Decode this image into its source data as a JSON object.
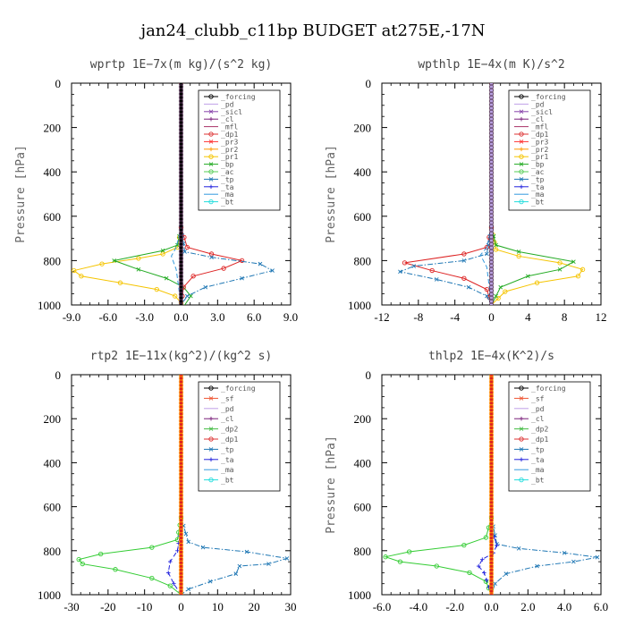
{
  "figure": {
    "title": "jan24_clubb_c11bp  BUDGET at275E,-17N"
  },
  "chart_data": [
    {
      "type": "line",
      "title": "wprtp   1E−7x(m kg)/(s^2 kg)",
      "ylabel": "Pressure [hPa]",
      "xlim": [
        -9.0,
        9.0
      ],
      "ylim": [
        1000,
        0
      ],
      "xticks": [
        "-9.0",
        "-6.0",
        "-3.0",
        "0.0",
        "3.0",
        "6.0",
        "9.0"
      ],
      "xtick_values": [
        -9,
        -6,
        -3,
        0,
        3,
        6,
        9
      ],
      "yticks": [
        "0",
        "200",
        "400",
        "600",
        "800",
        "1000"
      ],
      "ytick_values": [
        0,
        200,
        400,
        600,
        800,
        1000
      ],
      "legend": [
        "_forcing",
        "_pd",
        "_sicl",
        "_cl",
        "_mfl",
        "_dp1",
        "_pr3",
        "_pr2",
        "_pr1",
        "_bp",
        "_ac",
        "_tp",
        "_ta",
        "_ma",
        "_bt"
      ],
      "legend_position": "top-right",
      "series": [
        {
          "name": "_pr1",
          "color": "#f5c400",
          "dash": "solid",
          "marker": "circle",
          "x": [
            0,
            0,
            -0.3,
            -1.5,
            -3.5,
            -6.5,
            -8.8,
            -8.2,
            -5.0,
            -2.0,
            -0.5,
            0,
            0.2
          ],
          "y": [
            0,
            650,
            740,
            770,
            790,
            815,
            845,
            870,
            900,
            930,
            960,
            990,
            1000
          ]
        },
        {
          "name": "_bp",
          "color": "#22aa22",
          "dash": "solid",
          "marker": "x",
          "x": [
            0,
            0,
            -0.3,
            -1.5,
            -5.5,
            -3.5,
            -1.2,
            0.2,
            0.8,
            0.3
          ],
          "y": [
            0,
            650,
            730,
            755,
            800,
            840,
            880,
            920,
            960,
            1000
          ]
        },
        {
          "name": "_dp1",
          "color": "#dd2222",
          "dash": "solid",
          "marker": "circle",
          "x": [
            0,
            0,
            0.5,
            2.5,
            5.0,
            3.5,
            1.0,
            0.2,
            0
          ],
          "y": [
            0,
            650,
            740,
            770,
            800,
            835,
            870,
            920,
            1000
          ]
        },
        {
          "name": "_tp",
          "color": "#1f77b4",
          "dash": "dashdot",
          "marker": "x",
          "x": [
            0,
            0,
            0.3,
            2.5,
            6.5,
            7.5,
            5.0,
            2.0,
            0.5,
            0
          ],
          "y": [
            0,
            650,
            760,
            785,
            815,
            845,
            880,
            920,
            960,
            1000
          ]
        },
        {
          "name": "_ma",
          "color": "#3399dd",
          "dash": "dash",
          "marker": "none",
          "x": [
            0,
            0,
            -0.4,
            -0.8,
            -0.4,
            0
          ],
          "y": [
            0,
            650,
            740,
            780,
            840,
            1000
          ]
        },
        {
          "name": "_forcing",
          "color": "#000000",
          "dash": "solid",
          "marker": "circle",
          "x": [
            0,
            0
          ],
          "y": [
            0,
            1000
          ]
        }
      ]
    },
    {
      "type": "line",
      "title": "wpthlp   1E−4x(m K)/s^2",
      "ylabel": "Pressure [hPa]",
      "xlim": [
        -12,
        12
      ],
      "ylim": [
        1000,
        0
      ],
      "xticks": [
        "-12",
        "-8",
        "-4",
        "0",
        "4",
        "8",
        "12"
      ],
      "xtick_values": [
        -12,
        -8,
        -4,
        0,
        4,
        8,
        12
      ],
      "yticks": [
        "0",
        "200",
        "400",
        "600",
        "800",
        "1000"
      ],
      "ytick_values": [
        0,
        200,
        400,
        600,
        800,
        1000
      ],
      "legend": [
        "_forcing",
        "_pd",
        "_sicl",
        "_cl",
        "_mfl",
        "_dp1",
        "_pr3",
        "_pr2",
        "_pr1",
        "_bp",
        "_ac",
        "_tp",
        "_ta",
        "_ma",
        "_bt"
      ],
      "legend_position": "top-right",
      "series": [
        {
          "name": "_pr1",
          "color": "#f5c400",
          "dash": "solid",
          "marker": "circle",
          "x": [
            0,
            0,
            0.5,
            3.0,
            7.5,
            10.0,
            9.5,
            5.0,
            1.5,
            0
          ],
          "y": [
            0,
            650,
            750,
            780,
            810,
            840,
            870,
            900,
            940,
            1000
          ]
        },
        {
          "name": "_bp",
          "color": "#22aa22",
          "dash": "solid",
          "marker": "x",
          "x": [
            0,
            0,
            0.5,
            3.0,
            9.0,
            7.5,
            4.0,
            1.0,
            0
          ],
          "y": [
            0,
            650,
            730,
            760,
            805,
            840,
            870,
            920,
            1000
          ]
        },
        {
          "name": "_dp1",
          "color": "#dd2222",
          "dash": "solid",
          "marker": "circle",
          "x": [
            0,
            0,
            -0.5,
            -3.0,
            -9.5,
            -6.5,
            -3.0,
            -0.5,
            0
          ],
          "y": [
            0,
            650,
            740,
            770,
            810,
            845,
            880,
            930,
            1000
          ]
        },
        {
          "name": "_tp",
          "color": "#1f77b4",
          "dash": "dashdot",
          "marker": "x",
          "x": [
            0,
            0,
            -0.5,
            -3.0,
            -8.5,
            -10.0,
            -6.0,
            -2.5,
            -0.5,
            0
          ],
          "y": [
            0,
            650,
            770,
            800,
            825,
            850,
            885,
            920,
            960,
            1000
          ]
        },
        {
          "name": "_ma",
          "color": "#3399dd",
          "dash": "dash",
          "marker": "none",
          "x": [
            0,
            0,
            -0.5,
            -1.2,
            -0.5,
            0
          ],
          "y": [
            0,
            650,
            740,
            775,
            830,
            1000
          ]
        },
        {
          "name": "_forcing",
          "color": "#b8a0e0",
          "dash": "solid",
          "marker": "circle",
          "x": [
            0,
            0
          ],
          "y": [
            0,
            1000
          ]
        }
      ]
    },
    {
      "type": "line",
      "title": "rtp2   1E−11x(kg^2)/(kg^2 s)",
      "ylabel": "",
      "xlim": [
        -30,
        30
      ],
      "ylim": [
        1000,
        0
      ],
      "xticks": [
        "-30",
        "-20",
        "-10",
        "0",
        "10",
        "20",
        "30"
      ],
      "xtick_values": [
        -30,
        -20,
        -10,
        0,
        10,
        20,
        30
      ],
      "yticks": [
        "0",
        "200",
        "400",
        "600",
        "800",
        "1000"
      ],
      "ytick_values": [
        0,
        200,
        400,
        600,
        800,
        1000
      ],
      "legend": [
        "_forcing",
        "_sf",
        "_pd",
        "_cl",
        "_dp2",
        "_dp1",
        "_tp",
        "_ta",
        "_ma",
        "_bt"
      ],
      "legend_position": "top-right",
      "series": [
        {
          "name": "_dp1",
          "color": "#33cc33",
          "dash": "solid",
          "marker": "circle",
          "x": [
            0,
            0,
            -1.0,
            -8.0,
            -22.0,
            -28.0,
            -27.0,
            -18.0,
            -8.0,
            -3.0,
            0
          ],
          "y": [
            0,
            650,
            750,
            785,
            815,
            840,
            860,
            885,
            925,
            960,
            1000
          ]
        },
        {
          "name": "_tp",
          "color": "#1f77b4",
          "dash": "dashdot",
          "marker": "x",
          "x": [
            0,
            0,
            2.0,
            6.0,
            18.0,
            29.0,
            24.0,
            16.0,
            15.0,
            8.0,
            2.0,
            0
          ],
          "y": [
            0,
            650,
            760,
            785,
            805,
            835,
            860,
            870,
            905,
            940,
            975,
            1000
          ]
        },
        {
          "name": "_ta",
          "color": "#2222dd",
          "dash": "dash",
          "marker": "plus",
          "x": [
            0,
            0,
            -1.0,
            -3.0,
            -3.5,
            -2.0,
            0
          ],
          "y": [
            0,
            700,
            800,
            850,
            900,
            950,
            1000
          ]
        },
        {
          "name": "_forcing",
          "color": "#dd2222",
          "dash": "solid",
          "marker": "circle",
          "x": [
            0,
            0
          ],
          "y": [
            0,
            1000
          ]
        }
      ]
    },
    {
      "type": "line",
      "title": "thlp2   1E−4x(K^2)/s",
      "ylabel": "Pressure [hPa]",
      "xlim": [
        -6.0,
        6.0
      ],
      "ylim": [
        1000,
        0
      ],
      "xticks": [
        "-6.0",
        "-4.0",
        "-2.0",
        "0.0",
        "2.0",
        "4.0",
        "6.0"
      ],
      "xtick_values": [
        -6,
        -4,
        -2,
        0,
        2,
        4,
        6
      ],
      "yticks": [
        "0",
        "200",
        "400",
        "600",
        "800",
        "1000"
      ],
      "ytick_values": [
        0,
        200,
        400,
        600,
        800,
        1000
      ],
      "legend": [
        "_forcing",
        "_sf",
        "_pd",
        "_cl",
        "_dp2",
        "_dp1",
        "_tp",
        "_ta",
        "_ma",
        "_bt"
      ],
      "legend_position": "top-right",
      "series": [
        {
          "name": "_dp1",
          "color": "#33cc33",
          "dash": "solid",
          "marker": "circle",
          "x": [
            0,
            0,
            -0.3,
            -1.5,
            -4.5,
            -5.8,
            -5.0,
            -3.0,
            -1.2,
            -0.3,
            0
          ],
          "y": [
            0,
            650,
            740,
            775,
            805,
            828,
            850,
            870,
            900,
            940,
            1000
          ]
        },
        {
          "name": "_tp",
          "color": "#1f77b4",
          "dash": "dashdot",
          "marker": "x",
          "x": [
            0,
            0,
            0.3,
            1.5,
            4.0,
            5.8,
            4.5,
            2.5,
            0.8,
            0.2,
            0
          ],
          "y": [
            0,
            650,
            770,
            790,
            810,
            830,
            850,
            870,
            905,
            950,
            1000
          ]
        },
        {
          "name": "_ta",
          "color": "#2222dd",
          "dash": "dash",
          "marker": "plus",
          "x": [
            0,
            0,
            0.3,
            0.1,
            -0.5,
            -0.7,
            -0.4,
            0
          ],
          "y": [
            0,
            700,
            775,
            810,
            840,
            870,
            900,
            1000
          ]
        },
        {
          "name": "_forcing",
          "color": "#dd2222",
          "dash": "solid",
          "marker": "circle",
          "x": [
            0,
            0
          ],
          "y": [
            0,
            1000
          ]
        }
      ]
    }
  ]
}
